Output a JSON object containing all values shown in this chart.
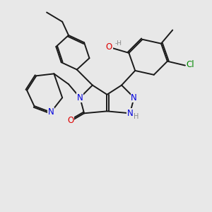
{
  "bg_color": "#e8e8e8",
  "bond_color": "#1a1a1a",
  "bond_width": 1.4,
  "atom_colors": {
    "N": "#0000dd",
    "O": "#dd0000",
    "Cl": "#008800",
    "H": "#888888",
    "C": "#1a1a1a"
  },
  "fs": 8.5,
  "fs_small": 7.0
}
